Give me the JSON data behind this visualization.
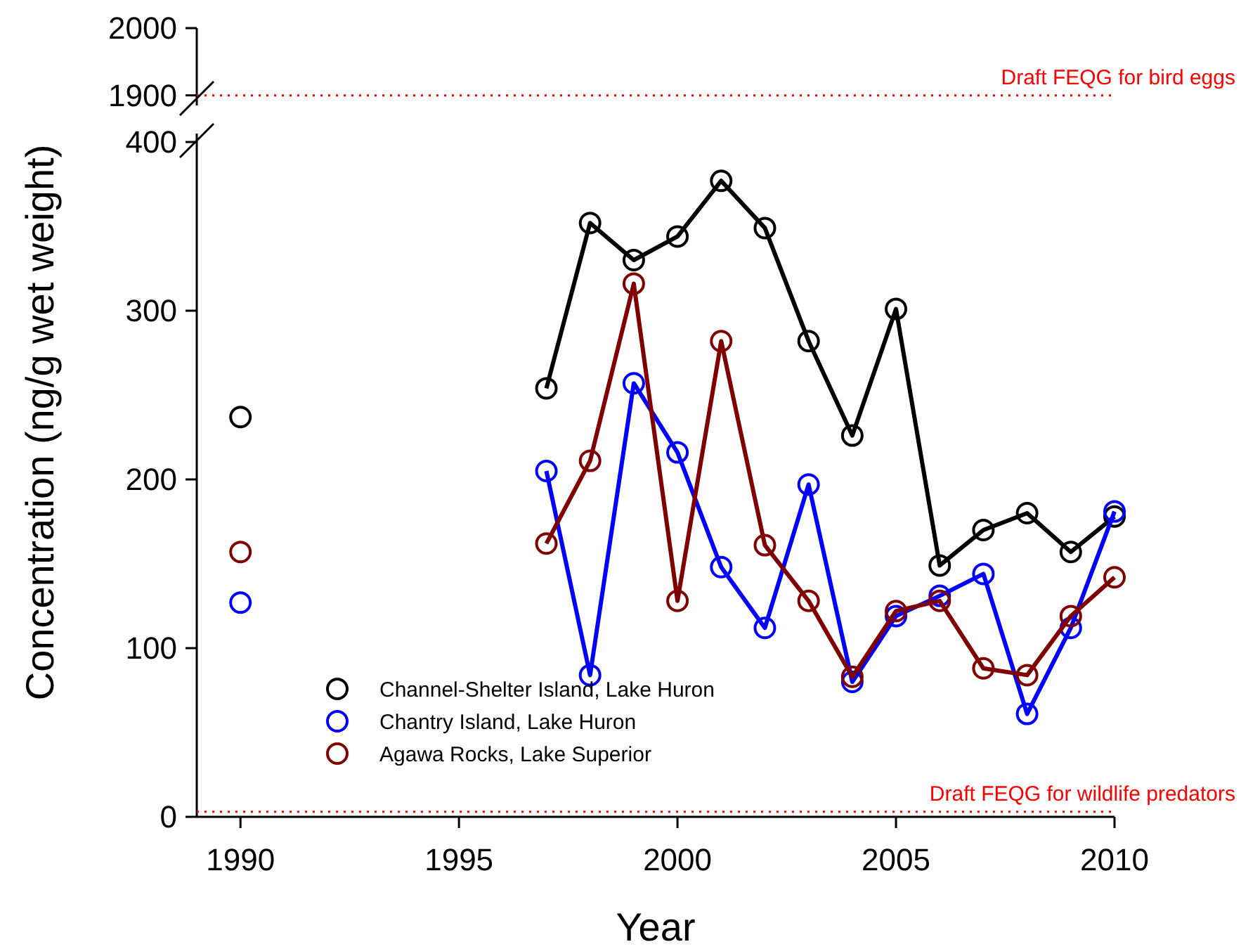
{
  "chart_data": [
    {
      "type": "line",
      "xlim": [
        1989,
        2010
      ],
      "ylim": [
        1885,
        2000
      ],
      "yticks": [
        1900,
        2000
      ],
      "tick_labels": "y",
      "ref_lines": [
        {
          "axis": "y",
          "value": 1900,
          "label": "Draft FEQG for bird eggs",
          "color": "#ff0000",
          "line_style": "dotted"
        }
      ]
    },
    {
      "type": "line",
      "xlabel": "Year",
      "ylabel": "Concentration (ng/g wet weight)",
      "xlim": [
        1989,
        2010
      ],
      "ylim": [
        0,
        405
      ],
      "xticks": [
        1990,
        1995,
        2000,
        2005,
        2010
      ],
      "yticks": [
        0,
        100,
        200,
        300,
        400
      ],
      "marker": "circle",
      "legend": "bottom left",
      "x": [
        1990,
        1996,
        1997,
        1998,
        1999,
        2000,
        2001,
        2002,
        2003,
        2004,
        2005,
        2006,
        2007,
        2008,
        2009,
        2010
      ],
      "series": [
        {
          "name": "Channel-Shelter Island, Lake Huron",
          "color": "#000000",
          "values": [
            237,
            null,
            254,
            352,
            330,
            344,
            377,
            349,
            282,
            226,
            301,
            149,
            170,
            180,
            157,
            178
          ]
        },
        {
          "name": "Chantry Island, Lake Huron",
          "color": "#0000ff",
          "values": [
            127,
            null,
            205,
            84,
            257,
            216,
            148,
            112,
            197,
            80,
            119,
            131,
            144,
            61,
            112,
            181
          ]
        },
        {
          "name": "Agawa Rocks, Lake Superior",
          "color": "#800000",
          "values": [
            157,
            null,
            162,
            211,
            316,
            128,
            282,
            161,
            128,
            83,
            122,
            128,
            88,
            84,
            119,
            142
          ]
        }
      ],
      "ref_lines": [
        {
          "axis": "y",
          "value": 3,
          "label": "Draft FEQG for wildlife predators",
          "color": "#ff0000",
          "line_style": "dotted"
        }
      ]
    }
  ]
}
